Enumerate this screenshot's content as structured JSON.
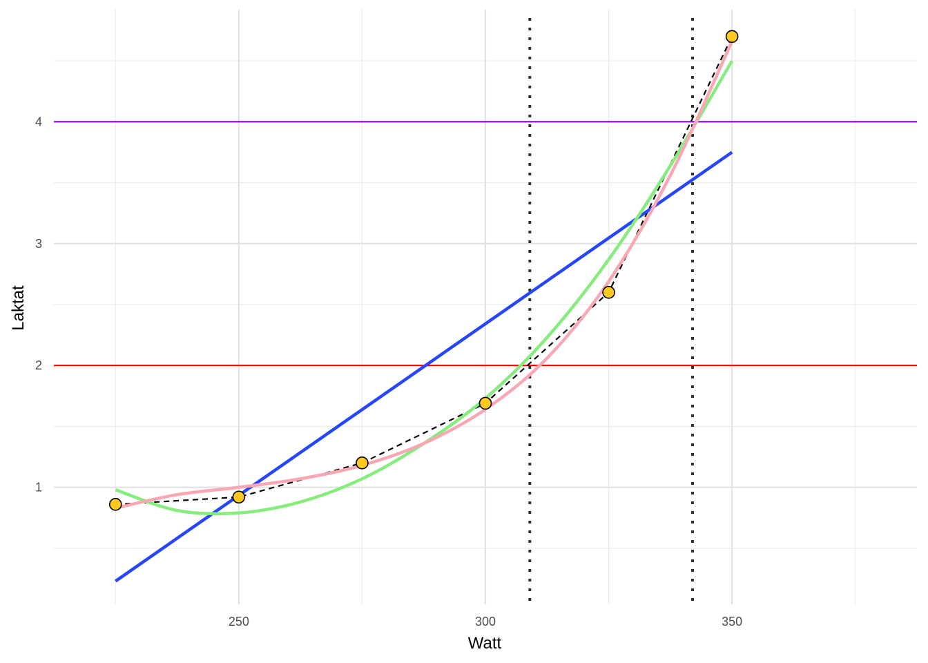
{
  "chart_data": {
    "type": "line",
    "xlabel": "Watt",
    "ylabel": "Laktat",
    "xlim": [
      212.5,
      387.5
    ],
    "ylim": [
      0.04,
      4.92
    ],
    "x_ticks": [
      250,
      300,
      350
    ],
    "x_tick_labels": [
      "250",
      "300",
      "350"
    ],
    "y_ticks": [
      1,
      2,
      3,
      4
    ],
    "y_tick_labels": [
      "1",
      "2",
      "3",
      "4"
    ],
    "x_minor_ticks": [
      225,
      275,
      325,
      375
    ],
    "y_minor_ticks": [
      0.5,
      1.5,
      2.5,
      3.5,
      4.5
    ],
    "grid": true,
    "points": {
      "x": [
        225,
        250,
        275,
        300,
        325,
        350
      ],
      "y": [
        0.86,
        0.92,
        1.2,
        1.69,
        2.6,
        4.7
      ],
      "fill": "#FFC91F"
    },
    "series": [
      {
        "style": "dashed",
        "color": "#000000",
        "x": [
          225,
          250,
          275,
          300,
          325,
          350
        ],
        "y": [
          0.86,
          0.92,
          1.2,
          1.69,
          2.6,
          4.7
        ]
      },
      {
        "style": "linear-fit",
        "color": "#2545FF",
        "x": [
          225,
          350
        ],
        "y": [
          0.23,
          3.75
        ]
      },
      {
        "style": "quadratic-fit",
        "color": "#86EC7E",
        "x": [
          225,
          237.5,
          250,
          262.5,
          275,
          287.5,
          300,
          312.5,
          325,
          337.5,
          350
        ],
        "y": [
          0.98,
          0.81,
          0.79,
          0.88,
          1.07,
          1.36,
          1.73,
          2.23,
          2.87,
          3.64,
          4.5
        ]
      },
      {
        "style": "cubic-fit",
        "color": "#F9A7B4",
        "x": [
          225,
          237.5,
          250,
          262.5,
          275,
          287.5,
          300,
          312.5,
          325,
          337.5,
          350
        ],
        "y": [
          0.83,
          0.94,
          1.0,
          1.07,
          1.18,
          1.36,
          1.64,
          2.06,
          2.69,
          3.56,
          4.66
        ]
      }
    ],
    "hlines": [
      {
        "y": 2,
        "color": "#FF0000"
      },
      {
        "y": 4,
        "color": "#8A00E6"
      }
    ],
    "vlines": [
      {
        "x": 309,
        "color": "#333333",
        "style": "dotted"
      },
      {
        "x": 342,
        "color": "#333333",
        "style": "dotted"
      }
    ]
  }
}
